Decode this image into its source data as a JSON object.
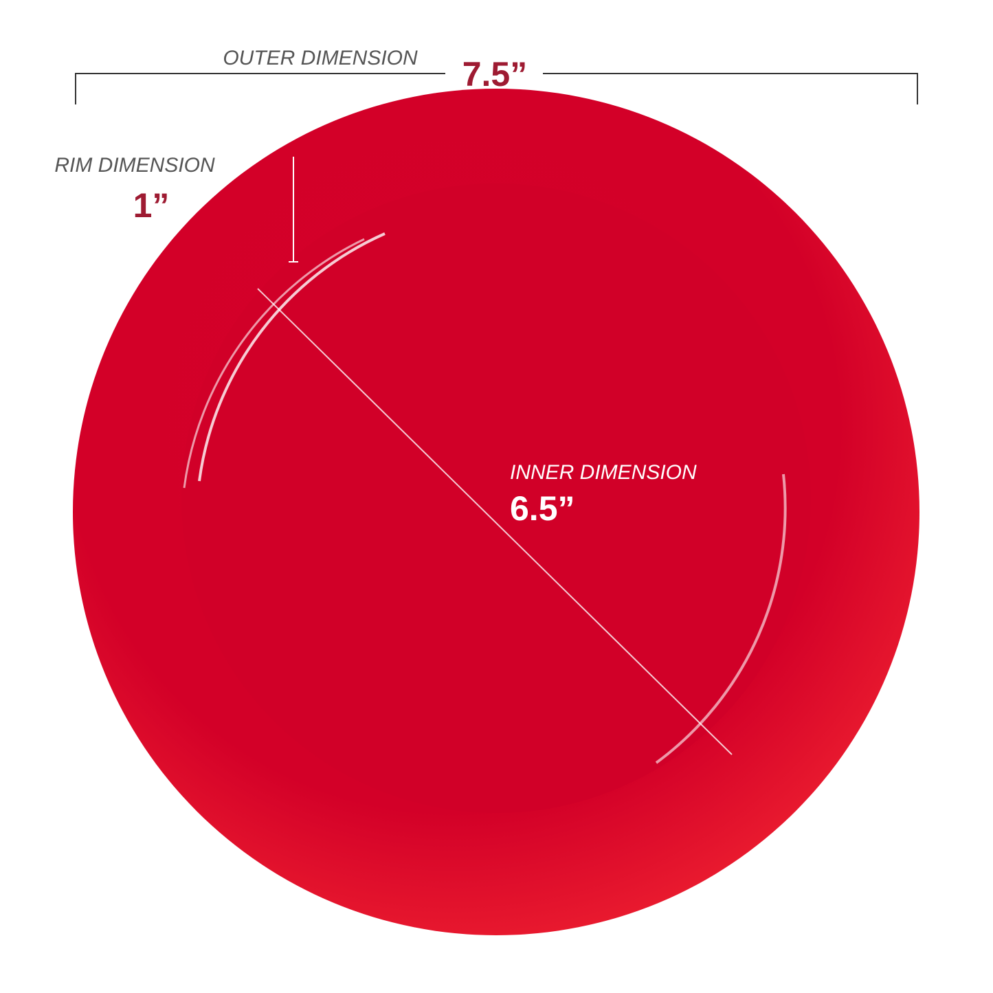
{
  "outer": {
    "label": "OUTER DIMENSION",
    "value": "7.5”"
  },
  "rim": {
    "label": "RIM DIMENSION",
    "value": "1”"
  },
  "inner": {
    "label": "INNER DIMENSION",
    "value": "6.5”"
  }
}
